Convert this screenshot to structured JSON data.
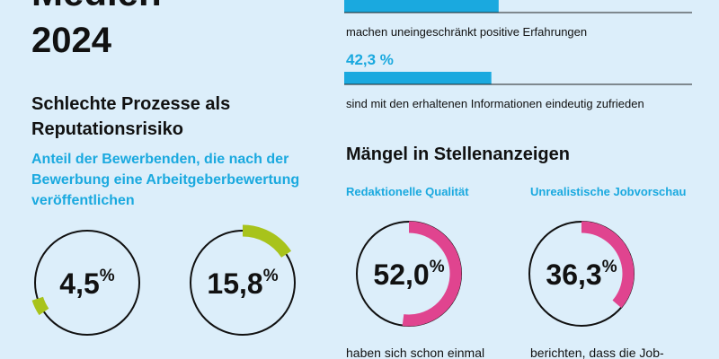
{
  "header": {
    "title": "Medien",
    "year": "2024"
  },
  "left": {
    "heading": [
      "Schlechte Prozesse als",
      "Reputationsrisiko"
    ],
    "subtitle": [
      "Anteil der Bewerbenden, die nach der",
      "Bewerbung eine Arbeitgeberbewertung",
      "veröffentlichen"
    ],
    "donuts": [
      {
        "value": 4.5,
        "label": "4,5",
        "unit": "%",
        "color": "#a8c31b"
      },
      {
        "value": 15.8,
        "label": "15,8",
        "unit": "%",
        "color": "#a8c31b"
      }
    ]
  },
  "right": {
    "bars": [
      {
        "value": 44.4,
        "text": "machen uneingeschränkt positive Erfahrungen"
      },
      {
        "value": 42.3,
        "label": "42,3 %",
        "text": "sind mit den erhaltenen Informationen eindeutig zufrieden"
      }
    ],
    "bar_color": "#1aa9df",
    "heading": "Mängel in Stellenanzeigen",
    "donuts": [
      {
        "title": "Redaktionelle Qualität",
        "value": 52.0,
        "label": "52,0",
        "unit": "%",
        "color": "#e0448f",
        "text": "haben sich schon einmal"
      },
      {
        "title": "Unrealistische Jobvorschau",
        "value": 36.3,
        "label": "36,3",
        "unit": "%",
        "color": "#e0448f",
        "text": "berichten, dass die Job-"
      }
    ]
  }
}
